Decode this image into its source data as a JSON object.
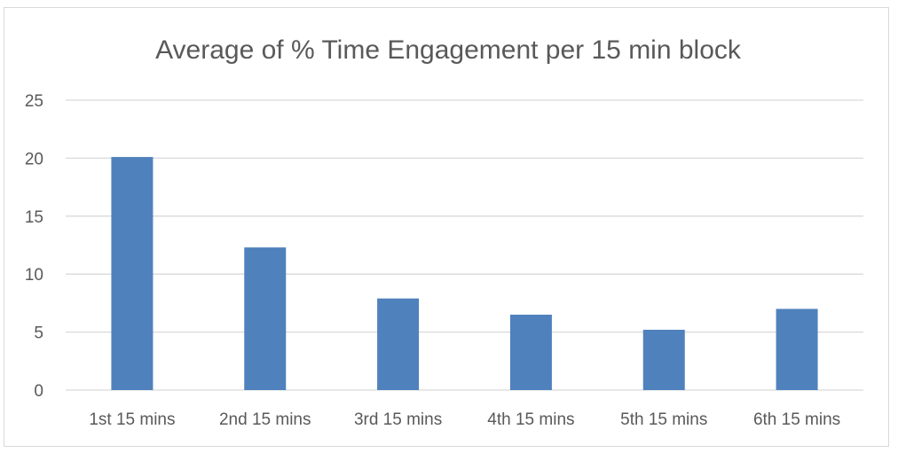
{
  "chart_data": {
    "type": "bar",
    "title": "Average of % Time Engagement per 15 min block",
    "categories": [
      "1st 15 mins",
      "2nd 15 mins",
      "3rd 15 mins",
      "4th 15 mins",
      "5th 15 mins",
      "6th 15 mins"
    ],
    "values": [
      20.1,
      12.3,
      7.9,
      6.5,
      5.2,
      7.0
    ],
    "xlabel": "",
    "ylabel": "",
    "ylim": [
      0,
      25
    ],
    "yticks": [
      0,
      5,
      10,
      15,
      20,
      25
    ],
    "grid": true,
    "legend": "none",
    "bar_color": "#4f81bd",
    "grid_color": "#d9d9d9",
    "text_color": "#595959"
  }
}
